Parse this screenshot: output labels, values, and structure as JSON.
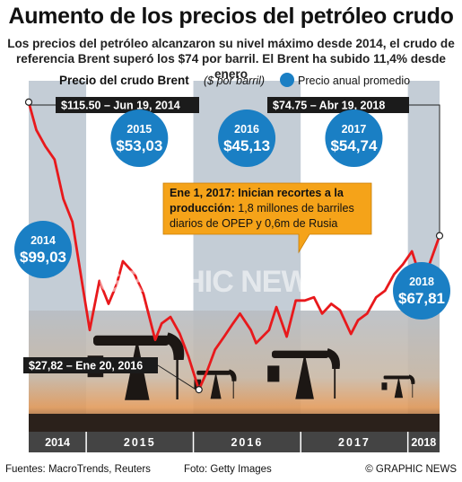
{
  "title": "Aumento de los precios del petróleo crudo",
  "subtitle_line1": "Los precios del petróleo alcanzaron su nivel máximo desde 2014, el crudo de",
  "subtitle_line2": "referencia Brent superó los $74 por barril. El Brent ha subido 11,4% desde enero",
  "footer": {
    "sources": "Fuentes: MacroTrends, Reuters",
    "photo": "Foto: Getty Images",
    "credit": "© GRAPHIC NEWS"
  },
  "watermark": "GRAPHIC NEWS",
  "colors": {
    "line": "#e8191c",
    "bubble": "#1a7fc4",
    "callout": "#f5a319",
    "label_bg": "#1b1b1b",
    "sky_top": "#b7bcc2",
    "sky_bottom": "#e8a062",
    "axis_bar": "#444444"
  },
  "chart_data": {
    "type": "line",
    "title": "Precio del crudo Brent",
    "units": "($ por barril)",
    "legend": "Precio anual promedio",
    "x_start": "2014-06-19",
    "x_end": "2018-04-19",
    "years": [
      "2014",
      "2015",
      "2016",
      "2017",
      "2018"
    ],
    "series": [
      {
        "points": [
          [
            "2014-06-19",
            115.5
          ],
          [
            "2014-07-15",
            107
          ],
          [
            "2014-08-15",
            102
          ],
          [
            "2014-09-15",
            98
          ],
          [
            "2014-10-15",
            86
          ],
          [
            "2014-11-15",
            79
          ],
          [
            "2014-12-15",
            62
          ],
          [
            "2015-01-13",
            46
          ],
          [
            "2015-02-15",
            61
          ],
          [
            "2015-03-18",
            54
          ],
          [
            "2015-04-15",
            60
          ],
          [
            "2015-05-06",
            67
          ],
          [
            "2015-06-15",
            63
          ],
          [
            "2015-07-15",
            57
          ],
          [
            "2015-08-24",
            43
          ],
          [
            "2015-09-15",
            48
          ],
          [
            "2015-10-15",
            50
          ],
          [
            "2015-11-15",
            45
          ],
          [
            "2015-12-15",
            38
          ],
          [
            "2016-01-20",
            27.82
          ],
          [
            "2016-02-15",
            33
          ],
          [
            "2016-03-15",
            40
          ],
          [
            "2016-04-15",
            44
          ],
          [
            "2016-05-15",
            48
          ],
          [
            "2016-06-08",
            51
          ],
          [
            "2016-07-15",
            46
          ],
          [
            "2016-08-02",
            42
          ],
          [
            "2016-09-15",
            46
          ],
          [
            "2016-10-10",
            53
          ],
          [
            "2016-11-14",
            44
          ],
          [
            "2016-12-15",
            55
          ],
          [
            "2017-01-15",
            55
          ],
          [
            "2017-02-15",
            56
          ],
          [
            "2017-03-15",
            51
          ],
          [
            "2017-04-15",
            54
          ],
          [
            "2017-05-15",
            52
          ],
          [
            "2017-06-21",
            44.8
          ],
          [
            "2017-07-15",
            49
          ],
          [
            "2017-08-15",
            51
          ],
          [
            "2017-09-15",
            56
          ],
          [
            "2017-10-15",
            58
          ],
          [
            "2017-11-15",
            63
          ],
          [
            "2017-12-15",
            66
          ],
          [
            "2018-01-15",
            70
          ],
          [
            "2018-02-09",
            63
          ],
          [
            "2018-03-15",
            66
          ],
          [
            "2018-04-19",
            74.75
          ]
        ]
      }
    ],
    "ylim": [
      15,
      122
    ],
    "annual_averages": [
      {
        "year": "2014",
        "value": "$99,03"
      },
      {
        "year": "2015",
        "value": "$53,03"
      },
      {
        "year": "2016",
        "value": "$45,13"
      },
      {
        "year": "2017",
        "value": "$54,74"
      },
      {
        "year": "2018",
        "value": "$67,81"
      }
    ],
    "annotations": {
      "high": "$115.50 – Jun 19, 2014",
      "low": "$27,82 – Ene 20, 2016",
      "latest": "$74.75 – Abr 19, 2018",
      "callout_bold1": "Ene 1, 2017: Inician recortes a la",
      "callout_bold2": "producción:",
      "callout_text1": " 1,8 millones de barriles",
      "callout_text2": "diarios de OPEP y 0,6m de Rusia"
    }
  }
}
